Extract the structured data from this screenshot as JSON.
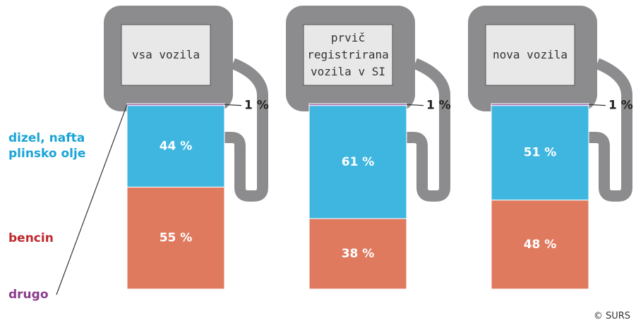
{
  "chart_data": {
    "type": "stacked_bar",
    "categories": [
      "vsa vozila",
      "prvič registrirana vozila v SI",
      "nova vozila"
    ],
    "series": [
      {
        "name": "bencin",
        "color": "#e07a5f",
        "label_color": "#c0272d",
        "values": [
          55,
          38,
          48
        ],
        "value_labels": [
          "55 %",
          "38 %",
          "48 %"
        ]
      },
      {
        "name": "dizel, nafta plinsko olje",
        "color": "#3fb6e0",
        "label_color": "#1aa3d6",
        "values": [
          44,
          61,
          51
        ],
        "value_labels": [
          "44 %",
          "61 %",
          "51 %"
        ]
      },
      {
        "name": "drugo",
        "color": "#a66bb0",
        "label_color": "#8a3c8c",
        "values": [
          1,
          1,
          1
        ],
        "value_labels": [
          "1 %",
          "1 %",
          "1 %"
        ]
      }
    ],
    "source": "© SURS"
  }
}
